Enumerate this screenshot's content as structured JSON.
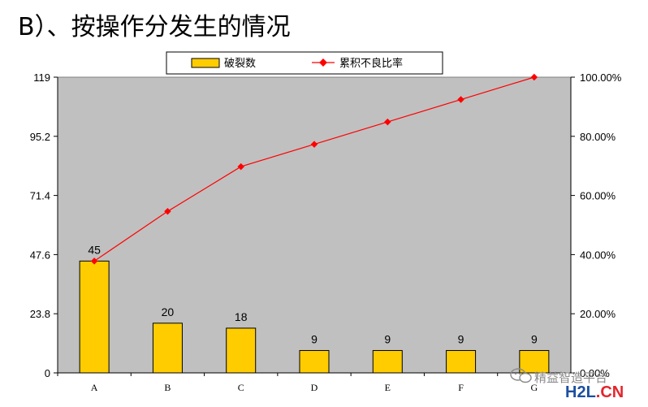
{
  "page": {
    "title": "B）、按操作分发生的情况"
  },
  "chart_data": {
    "type": "bar",
    "categories": [
      "A",
      "B",
      "C",
      "D",
      "E",
      "F",
      "G"
    ],
    "series": [
      {
        "name": "破裂数",
        "kind": "bar",
        "axis": "left",
        "color": "#ffcc00",
        "values": [
          45,
          20,
          18,
          9,
          9,
          9,
          9
        ]
      },
      {
        "name": "累积不良比率",
        "kind": "line",
        "axis": "right",
        "color": "#ff0000",
        "values": [
          0.3782,
          0.5462,
          0.6975,
          0.7731,
          0.8487,
          0.9244,
          1.0
        ]
      }
    ],
    "data_labels": [
      "45",
      "20",
      "18",
      "9",
      "9",
      "9",
      "9"
    ],
    "y_left": {
      "min": 0,
      "max": 119,
      "ticks": [
        "0",
        "23.8",
        "47.6",
        "71.4",
        "95.2",
        "119"
      ]
    },
    "y_right": {
      "min": 0,
      "max": 1,
      "ticks": [
        "0.00%",
        "20.00%",
        "40.00%",
        "60.00%",
        "80.00%",
        "100.00%"
      ]
    },
    "plot_background": "#c0c0c0",
    "grid": false,
    "legend_position": "top-center"
  },
  "watermark": {
    "text": "精益智造平台",
    "logo_main": "H2L",
    "logo_dot": ".",
    "logo_suffix": "CN"
  }
}
